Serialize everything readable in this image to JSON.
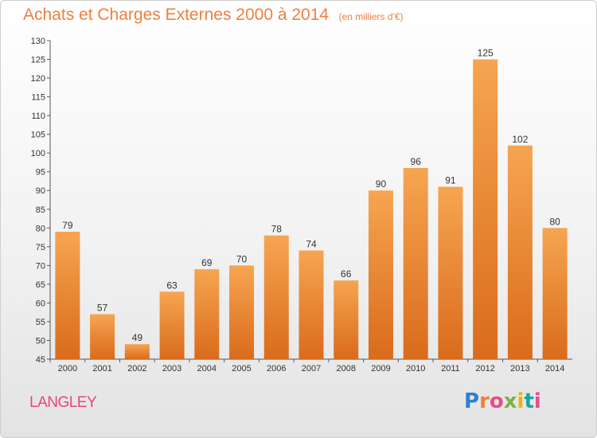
{
  "header": {
    "title": "Achats et Charges Externes 2000 à 2014",
    "subtitle": "(en milliers d'€)"
  },
  "footer": {
    "commune": "LANGLEY",
    "logo_text": "Proxiti",
    "logo_colors": [
      "#2e7fd1",
      "#f07f3c",
      "#e84b8a",
      "#7cb342",
      "#f0b400",
      "#1aa3a3",
      "#e84b8a"
    ]
  },
  "colors": {
    "bar_top": "#f6a551",
    "bar_bottom": "#d96b1c",
    "title": "#f07f3c",
    "axis": "#555555",
    "grid": "#dddddd"
  },
  "chart_data": {
    "type": "bar",
    "title": "Achats et Charges Externes 2000 à 2014",
    "subtitle": "(en milliers d'€)",
    "categories": [
      "2000",
      "2001",
      "2002",
      "2003",
      "2004",
      "2005",
      "2006",
      "2007",
      "2008",
      "2009",
      "2010",
      "2011",
      "2012",
      "2013",
      "2014"
    ],
    "values": [
      79,
      57,
      49,
      63,
      69,
      70,
      78,
      74,
      66,
      90,
      96,
      91,
      125,
      102,
      80
    ],
    "ylim": [
      45,
      130
    ],
    "yticks": [
      45,
      50,
      55,
      60,
      65,
      70,
      75,
      80,
      85,
      90,
      95,
      100,
      105,
      110,
      115,
      120,
      125,
      130
    ],
    "grid": false,
    "data_labels": true
  }
}
